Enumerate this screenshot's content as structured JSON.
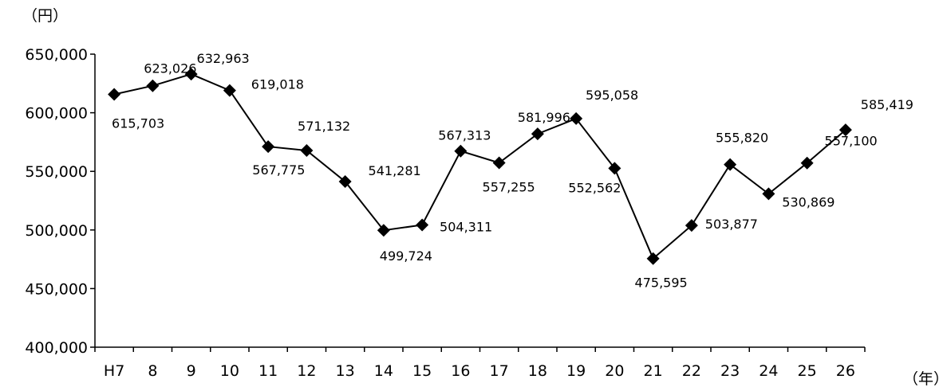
{
  "chart_data": {
    "type": "line",
    "title": "",
    "y_unit_label": "（円）",
    "x_unit_label": "（年）",
    "ylim": [
      400000,
      650000
    ],
    "y_ticks": [
      400000,
      450000,
      500000,
      550000,
      600000,
      650000
    ],
    "y_tick_labels": [
      "400,000",
      "450,000",
      "500,000",
      "550,000",
      "600,000",
      "650,000"
    ],
    "categories": [
      "H7",
      "8",
      "9",
      "10",
      "11",
      "12",
      "13",
      "14",
      "15",
      "16",
      "17",
      "18",
      "19",
      "20",
      "21",
      "22",
      "23",
      "24",
      "25",
      "26"
    ],
    "series": [
      {
        "values": [
          615703,
          623026,
          632963,
          619018,
          571132,
          567775,
          541281,
          499724,
          504311,
          567313,
          557255,
          581996,
          595058,
          552562,
          475595,
          503877,
          555820,
          530869,
          557100,
          585419
        ],
        "labels": [
          "615,703",
          "623,026",
          "632,963",
          "619,018",
          "571,132",
          "567,775",
          "541,281",
          "499,724",
          "504,311",
          "567,313",
          "557,255",
          "581,996",
          "595,058",
          "552,562",
          "475,595",
          "503,877",
          "555,820",
          "530,869",
          "557,100",
          "585,419"
        ]
      }
    ],
    "marker": "diamond",
    "line_color": "#000000",
    "grid": false
  }
}
